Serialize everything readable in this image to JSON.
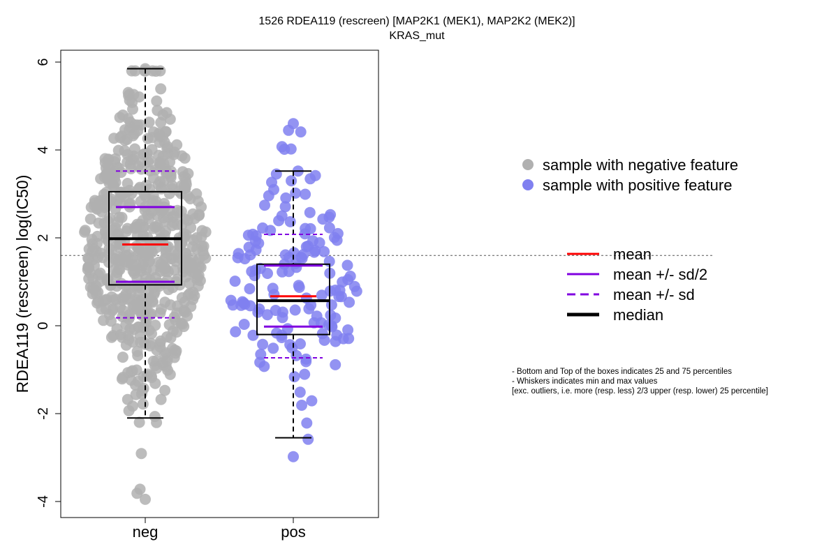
{
  "chart_data": {
    "type": "box",
    "title": "1526 RDEA119 (rescreen) [MAP2K1 (MEK1), MAP2K2 (MEK2)]",
    "subtitle": "KRAS_mut",
    "xlabel": "",
    "ylabel": "RDEA119 (rescreen) log(IC50)",
    "ylim": [
      -4.4,
      6.2
    ],
    "yticks": [
      -4,
      -2,
      0,
      2,
      4,
      6
    ],
    "ytick_labels": [
      "-4",
      "-2",
      "0",
      "2",
      "4",
      "6"
    ],
    "categories": [
      "neg",
      "pos"
    ],
    "reference_line": 1.6,
    "groups": [
      {
        "label": "neg",
        "color": "#b0b0b0",
        "q1": 0.93,
        "median": 1.98,
        "q3": 3.05,
        "whisker_low": -2.1,
        "whisker_high": 5.85,
        "mean": 1.85,
        "sd_half_low": 1.0,
        "sd_half_high": 2.7,
        "sd_low": 0.18,
        "sd_high": 3.52,
        "n_points": 640,
        "point_min": -3.95,
        "point_max": 5.85
      },
      {
        "label": "pos",
        "color": "#8080f0",
        "q1": -0.2,
        "median": 0.57,
        "q3": 1.4,
        "whisker_low": -2.55,
        "whisker_high": 3.52,
        "mean": 0.67,
        "sd_half_low": -0.02,
        "sd_half_high": 1.37,
        "sd_low": -0.73,
        "sd_high": 2.08,
        "n_points": 150,
        "point_min": -2.98,
        "point_max": 4.6
      }
    ]
  },
  "legend_points": [
    {
      "label": "sample with negative feature",
      "color": "#b0b0b0"
    },
    {
      "label": "sample with positive feature",
      "color": "#8080f0"
    }
  ],
  "legend_lines": [
    {
      "label": "mean",
      "color": "#ff0000",
      "style": "solid",
      "weight": "normal"
    },
    {
      "label": "mean +/- sd/2",
      "color": "#8000e0",
      "style": "solid",
      "weight": "normal"
    },
    {
      "label": "mean +/- sd",
      "color": "#8000e0",
      "style": "dashed",
      "weight": "normal"
    },
    {
      "label": "median",
      "color": "#000000",
      "style": "solid",
      "weight": "bold"
    }
  ],
  "notes": [
    "- Bottom and Top of the boxes indicates 25 and 75 percentiles",
    "- Whiskers indicates min and max values",
    "[exc. outliers, i.e. more (resp. less) 2/3 upper (resp. lower) 25 percentile]"
  ]
}
